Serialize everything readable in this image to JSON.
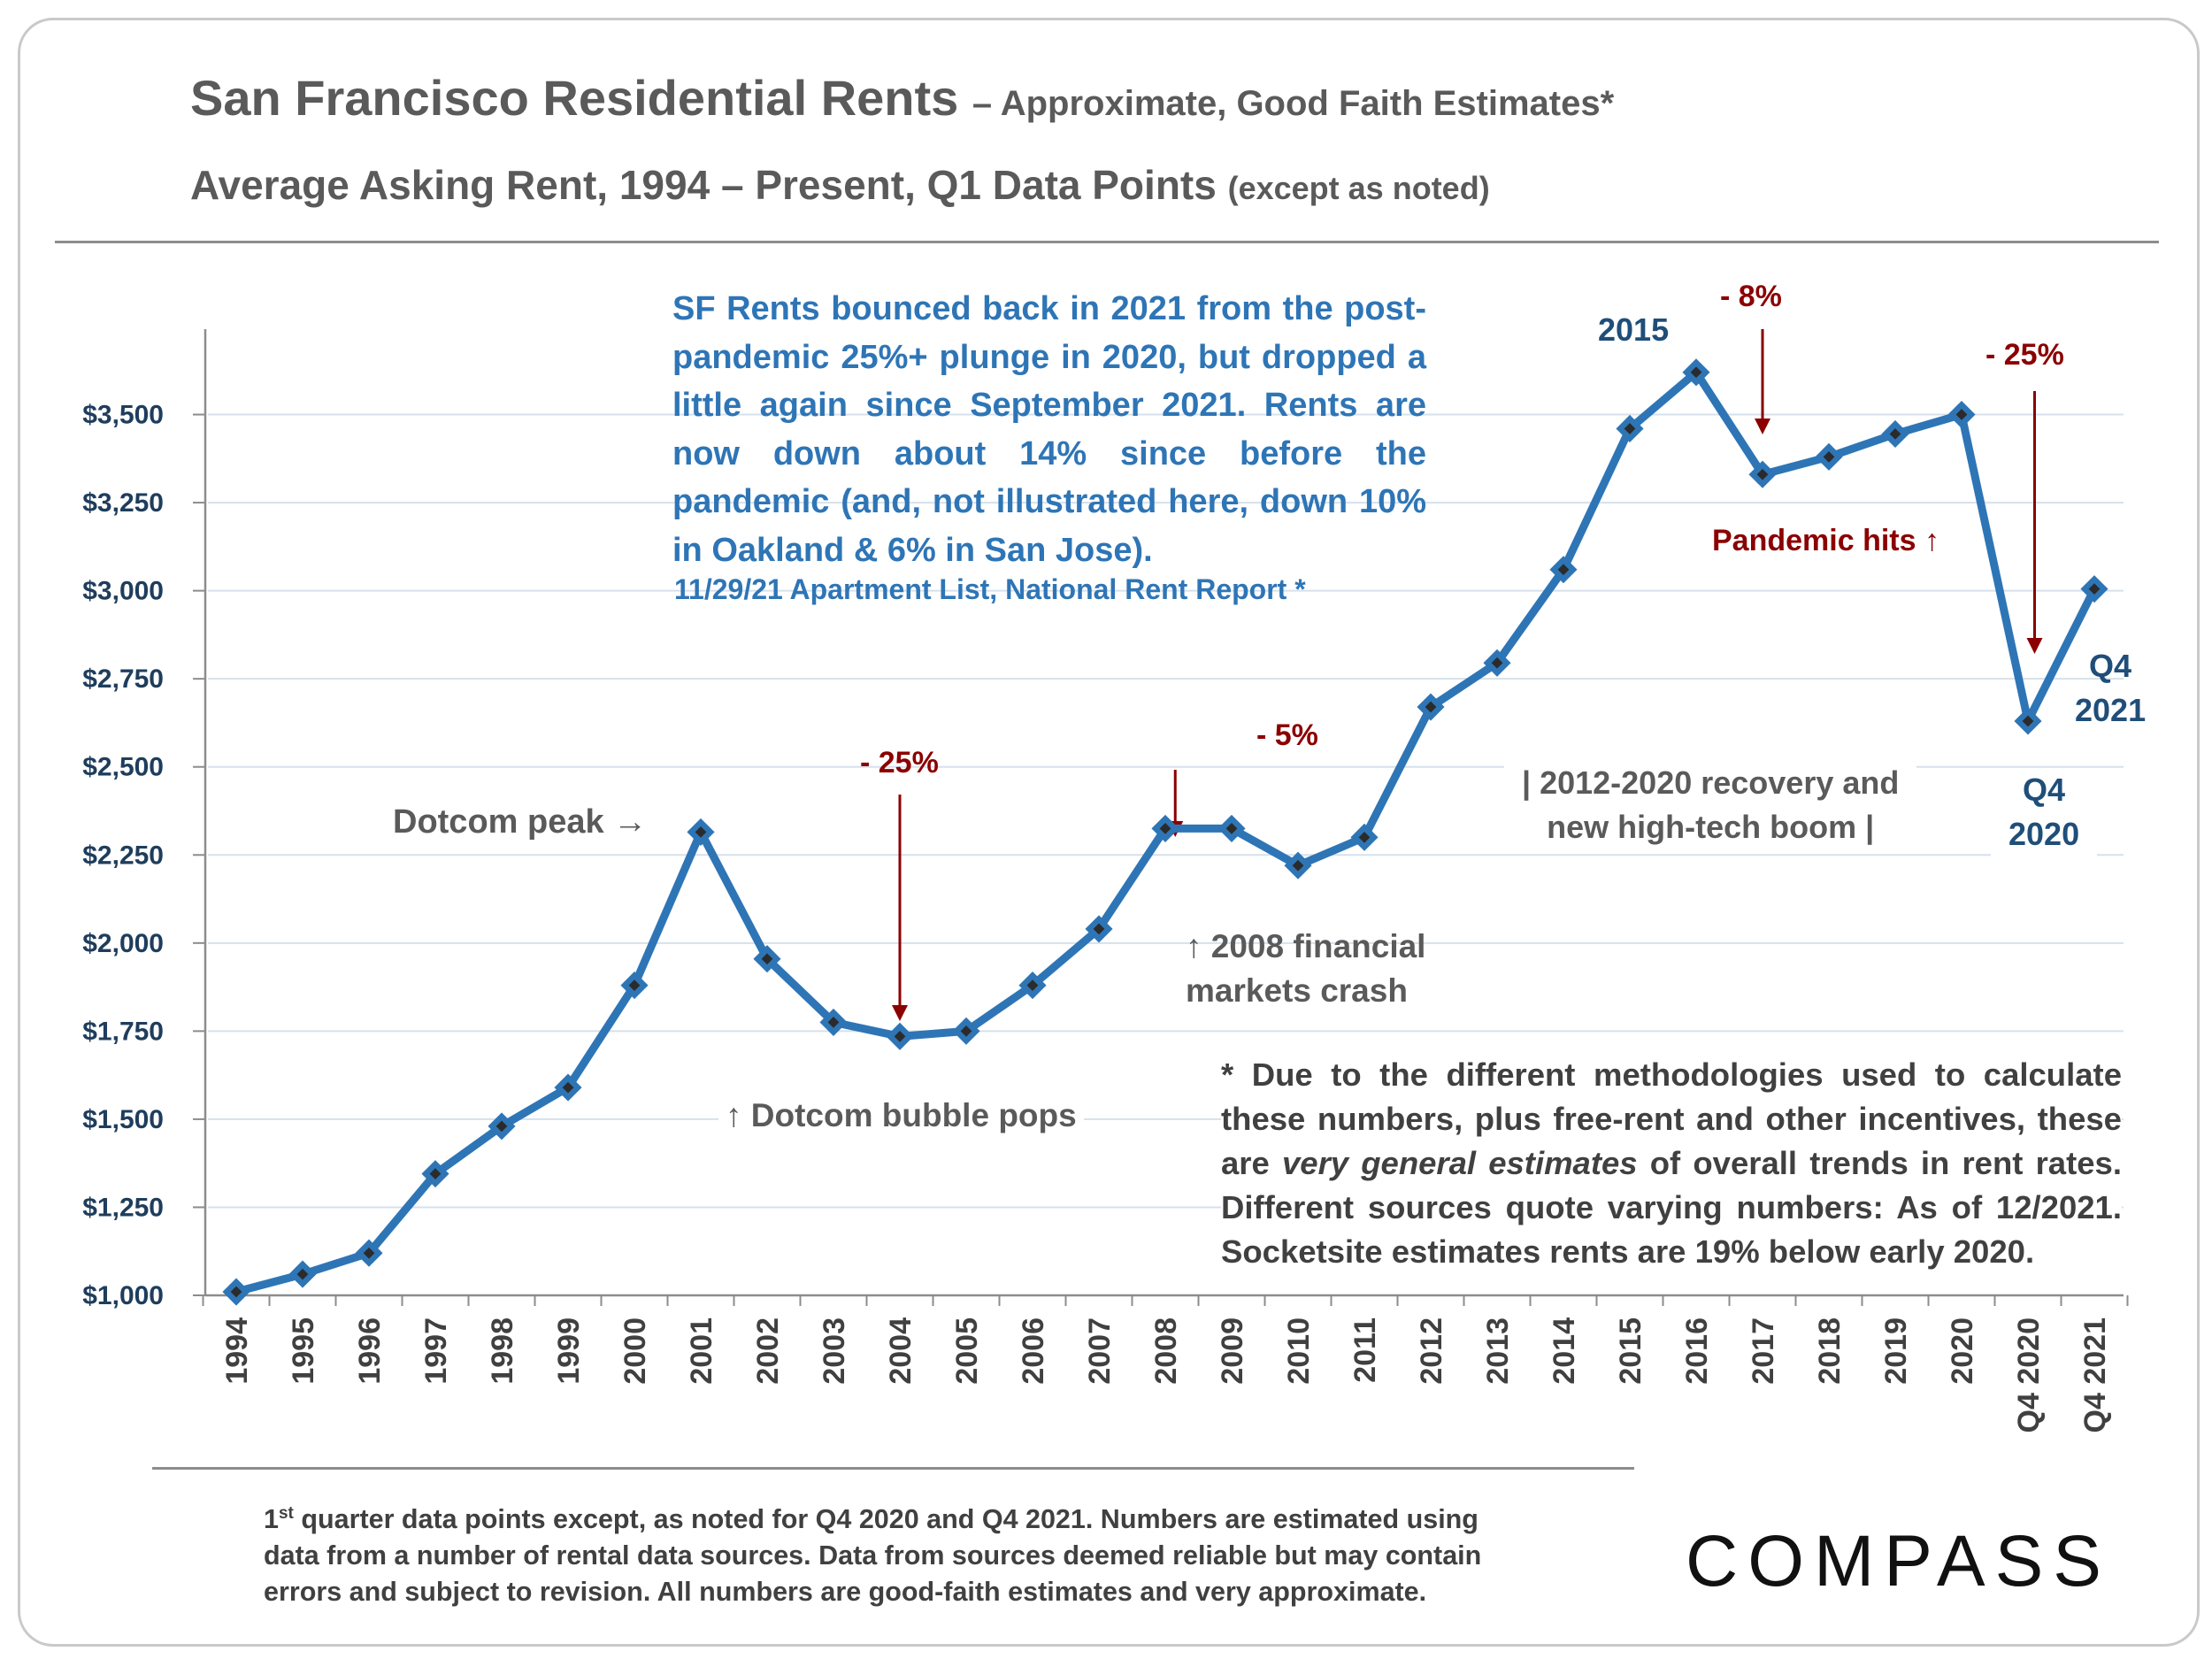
{
  "title": {
    "main": "San Francisco Residential Rents",
    "main_suffix": "– Approximate, Good Faith Estimates*",
    "subtitle": "Average Asking Rent, 1994 – Present, Q1 Data Points",
    "subtitle_suffix": "(except as noted)"
  },
  "callout": {
    "text": "SF Rents bounced back in 2021 from the post-pandemic 25%+ plunge in 2020, but dropped a little again since September 2021. Rents are now down about 14% since before the pandemic (and, not illustrated here, down 10% in Oakland & 6% in San Jose).",
    "source": "11/29/21 Apartment List, National Rent Report *"
  },
  "annotations": {
    "dotcom_peak": "Dotcom peak →",
    "dotcom_drop": "- 25%",
    "dotcom_pops": "↑ Dotcom bubble pops",
    "crash_drop": "- 5%",
    "crash_line1": "↑ 2008 financial",
    "crash_line2": "markets crash",
    "peak_2015": "2015",
    "drop_2017": "- 8%",
    "pandemic_hits": "Pandemic hits ↑",
    "recovery_line1": "| 2012-2020 recovery and",
    "recovery_line2": "new high-tech boom |",
    "drop_2020": "- 25%",
    "q4_2020_line1": "Q4",
    "q4_2020_line2": "2020",
    "q4_2021_line1": "Q4",
    "q4_2021_line2": "2021"
  },
  "footnote": {
    "part1": "* Due to the different methodologies used to calculate these numbers, plus free-rent and other incentives, these are",
    "emphasis": "very general estimates",
    "part2": "of overall trends in rent rates. Different sources quote varying numbers: As of 12/2021. Socketsite estimates rents are 19% below early 2020."
  },
  "footer": {
    "ordinal": "1",
    "ordinal_suffix": "st",
    "text": "quarter data points except, as noted for Q4 2020 and Q4 2021. Numbers are estimated using data from a number of rental data sources. Data from sources deemed reliable but may contain errors and subject to revision. All numbers are good-faith estimates and very approximate."
  },
  "logo": "COMPASS",
  "colors": {
    "line": "#2e75b6",
    "marker_center": "#2b2b2b",
    "annotation_red": "#8b0000",
    "axis_labels": "#1f3d5c",
    "callout_blue": "#2e75b6"
  },
  "chart_data": {
    "type": "line",
    "title": "San Francisco Residential Rents",
    "categories": [
      "1994",
      "1995",
      "1996",
      "1997",
      "1998",
      "1999",
      "2000",
      "2001",
      "2002",
      "2003",
      "2004",
      "2005",
      "2006",
      "2007",
      "2008",
      "2009",
      "2010",
      "2011",
      "2012",
      "2013",
      "2014",
      "2015",
      "2016",
      "2017",
      "2018",
      "2019",
      "2020",
      "Q4 2020",
      "Q4 2021"
    ],
    "values": [
      1010,
      1060,
      1120,
      1345,
      1480,
      1590,
      1880,
      2315,
      1955,
      1775,
      1735,
      1750,
      1880,
      2040,
      2325,
      2325,
      2220,
      2300,
      2670,
      2795,
      3060,
      3460,
      3620,
      3330,
      3380,
      3445,
      3500,
      2630,
      3005
    ],
    "y_ticks": [
      "$1,000",
      "$1,250",
      "$1,500",
      "$1,750",
      "$2,000",
      "$2,250",
      "$2,500",
      "$2,750",
      "$3,000",
      "$3,250",
      "$3,500"
    ],
    "ylim": [
      1000,
      3750
    ],
    "y_tick_step": 250,
    "grid": true,
    "legend": "none"
  }
}
